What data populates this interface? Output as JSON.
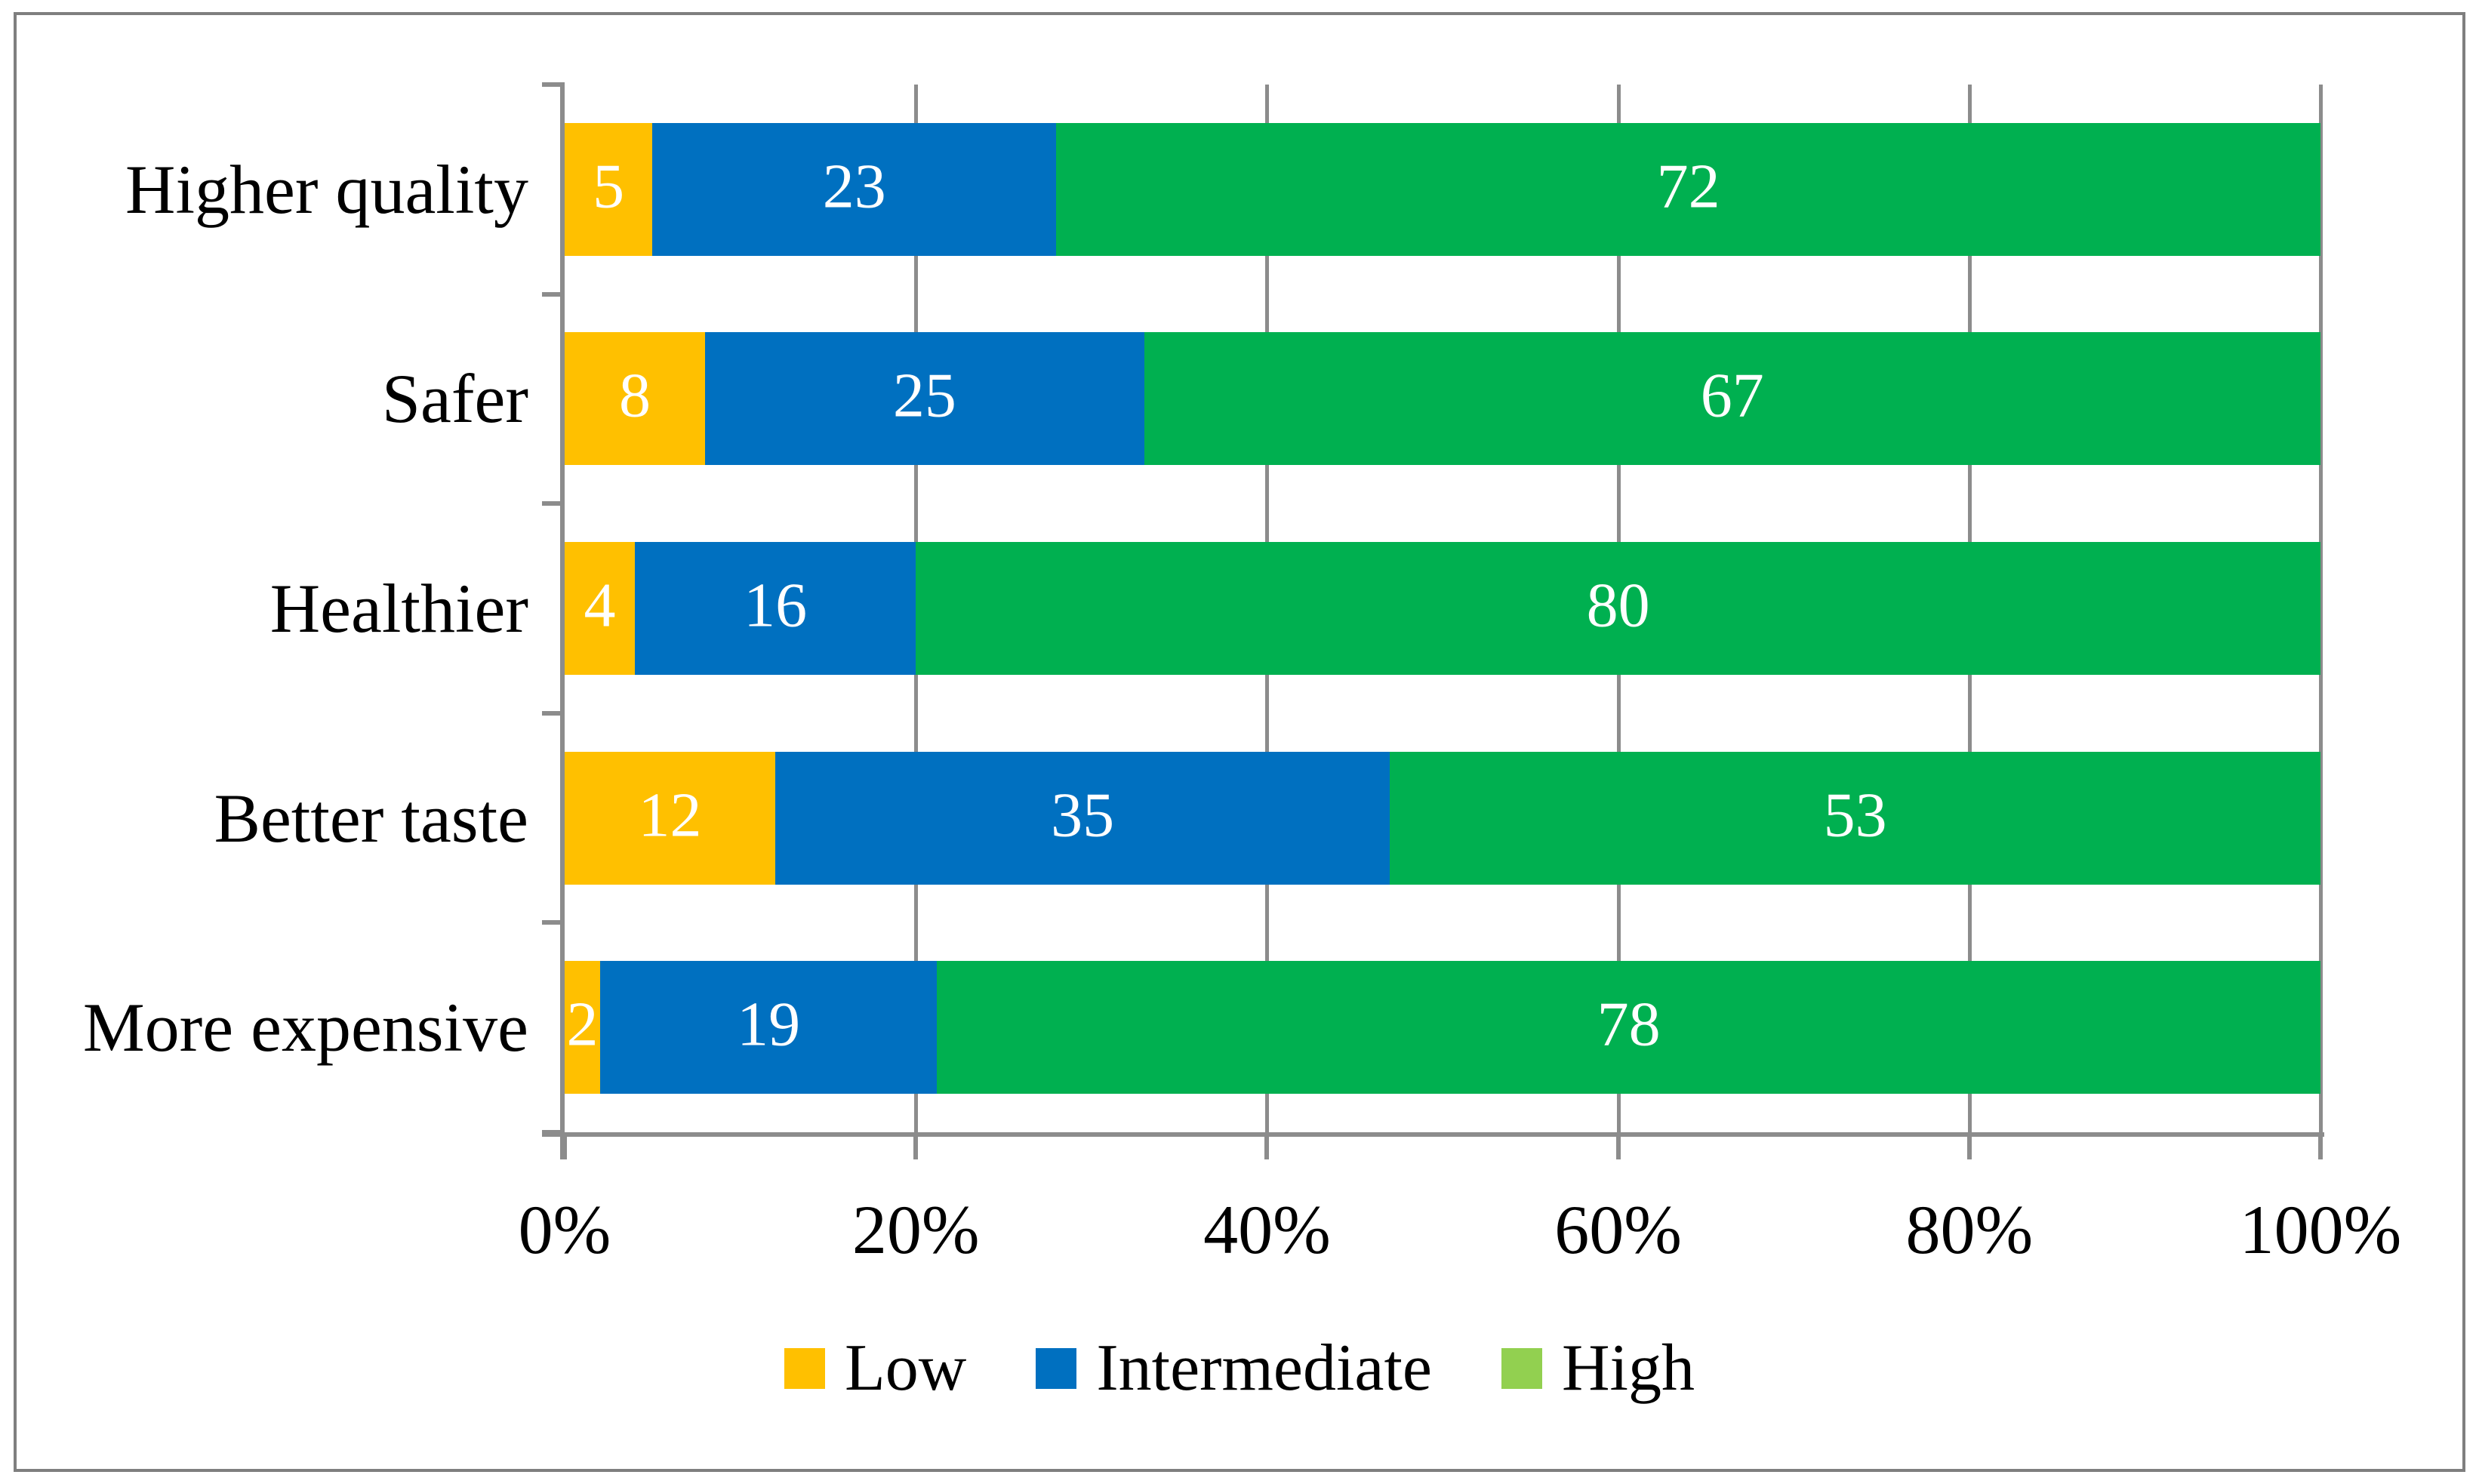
{
  "chart_data": {
    "type": "bar",
    "variant": "stacked-100",
    "orientation": "horizontal",
    "title": "",
    "categories": [
      "Higher quality",
      "Safer",
      "Healthier",
      "Better taste",
      "More expensive"
    ],
    "series": [
      {
        "name": "Low",
        "color": "#FFC000",
        "legend_color": "#FFC000",
        "values": [
          5,
          8,
          4,
          12,
          2
        ]
      },
      {
        "name": "Intermediate",
        "color": "#0070C0",
        "legend_color": "#0070C0",
        "values": [
          23,
          25,
          16,
          35,
          19
        ]
      },
      {
        "name": "High",
        "color": "#00B050",
        "legend_color": "#92D050",
        "values": [
          72,
          67,
          80,
          53,
          78
        ]
      }
    ],
    "x_ticks": [
      "0%",
      "20%",
      "40%",
      "60%",
      "80%",
      "100%"
    ],
    "xlim": [
      0,
      100
    ],
    "grid": true,
    "gridline_color": "#8C8C8C",
    "value_label_color": "#FFFFFF",
    "legend_position": "bottom"
  }
}
